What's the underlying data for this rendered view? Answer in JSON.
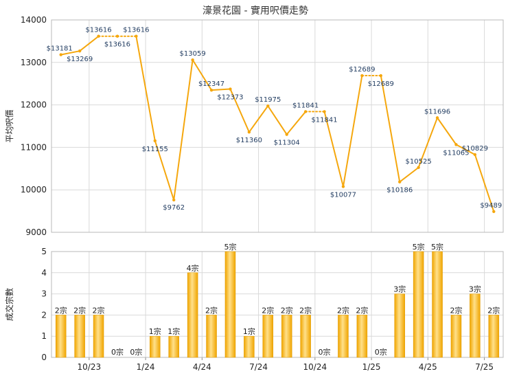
{
  "chart_data": [
    {
      "type": "line",
      "title": "濠景花園 - 實用呎價走勢",
      "ylabel": "平均呎價",
      "ylim": [
        9000,
        14000
      ],
      "yticks": [
        "14000",
        "13000",
        "12000",
        "11000",
        "10000",
        "9000"
      ],
      "grid": true,
      "color": "#f5a70d",
      "series": [
        {
          "values": [
            13181,
            13269,
            13616,
            13616,
            13616,
            11155,
            9762,
            13059,
            12347,
            12373,
            11360,
            11975,
            11304,
            11841,
            11841,
            10077,
            12689,
            12689,
            10186,
            10525,
            11696,
            11065,
            10829,
            9489
          ],
          "labels": [
            "$13181",
            "$13269",
            "$13616",
            "$13616",
            "$13616",
            "$11155",
            "$9762",
            "$13059",
            "$12347",
            "$12373",
            "$11360",
            "$11975",
            "$11304",
            "$11841",
            "$11841",
            "$10077",
            "$12689",
            "$12689",
            "$10186",
            "$10525",
            "$11696",
            "$11065",
            "$10829",
            "$9489"
          ]
        }
      ]
    },
    {
      "type": "bar",
      "ylabel": "成交宗數",
      "ylim": [
        0,
        5
      ],
      "yticks": [
        "5",
        "4",
        "3",
        "2",
        "1",
        "0"
      ],
      "grid": true,
      "color": "#f2a900",
      "xticks": [
        {
          "label": "10/23",
          "pos": 1.5
        },
        {
          "label": "1/24",
          "pos": 4.5
        },
        {
          "label": "4/24",
          "pos": 7.5
        },
        {
          "label": "7/24",
          "pos": 10.5
        },
        {
          "label": "10/24",
          "pos": 13.5
        },
        {
          "label": "1/25",
          "pos": 16.5
        },
        {
          "label": "4/25",
          "pos": 19.5
        },
        {
          "label": "7/25",
          "pos": 22.5
        }
      ],
      "values": [
        2,
        2,
        2,
        0,
        0,
        1,
        1,
        4,
        2,
        5,
        1,
        2,
        2,
        2,
        0,
        2,
        2,
        0,
        3,
        5,
        5,
        2,
        3,
        2
      ],
      "labels": [
        "2宗",
        "2宗",
        "2宗",
        "0宗",
        "0宗",
        "1宗",
        "1宗",
        "4宗",
        "2宗",
        "5宗",
        "1宗",
        "2宗",
        "2宗",
        "2宗",
        "0宗",
        "2宗",
        "2宗",
        "0宗",
        "3宗",
        "5宗",
        "5宗",
        "2宗",
        "3宗",
        "2宗"
      ]
    }
  ]
}
